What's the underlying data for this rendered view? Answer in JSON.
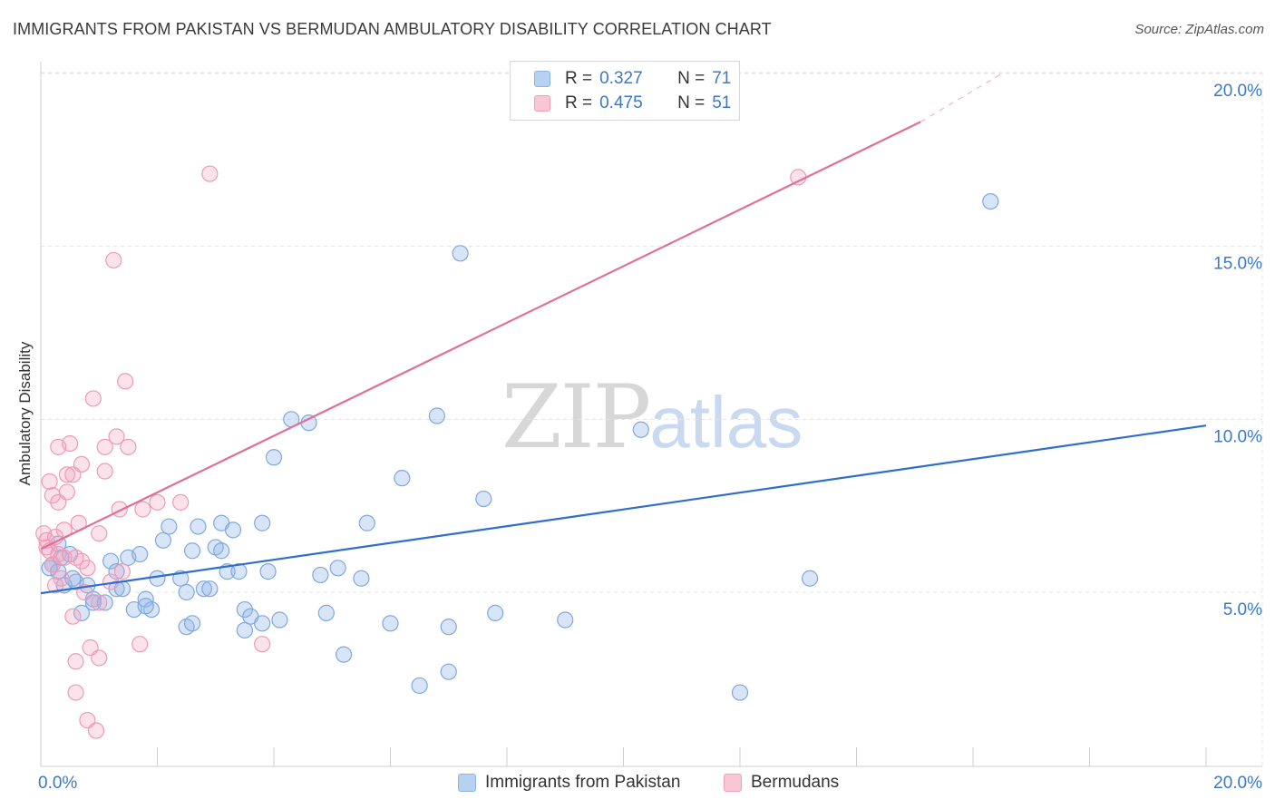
{
  "title": "IMMIGRANTS FROM PAKISTAN VS BERMUDAN AMBULATORY DISABILITY CORRELATION CHART",
  "source": "Source: ZipAtlas.com",
  "watermark": {
    "zip": "ZIP",
    "atlas": "atlas"
  },
  "legend": {
    "series": [
      {
        "r_label": "R =",
        "r_value": "0.327",
        "n_label": "N =",
        "n_value": "71",
        "fill": "#b7d1f3",
        "stroke": "#8db3e6"
      },
      {
        "r_label": "R =",
        "r_value": "0.475",
        "n_label": "N =",
        "n_value": "51",
        "fill": "#f9c6d6",
        "stroke": "#f0a0bb"
      }
    ]
  },
  "bottom_legend": [
    {
      "label": "Immigrants from Pakistan"
    },
    {
      "label": "Bermudans"
    }
  ],
  "colors": {
    "blue_fill": "rgba(143,180,232,0.35)",
    "blue_stroke": "#7fa8df",
    "blue_line": "#2f6ecb",
    "pink_fill": "rgba(244,160,190,0.30)",
    "pink_stroke": "#ee9ab7",
    "pink_line": "#e07098",
    "axis_text": "#3a78c9",
    "grid": "#e3e3e3"
  },
  "chart_data": {
    "type": "scatter",
    "title": "IMMIGRANTS FROM PAKISTAN VS BERMUDAN AMBULATORY DISABILITY CORRELATION CHART",
    "xlabel": "",
    "ylabel": "Ambulatory Disability",
    "xlim": [
      0,
      20
    ],
    "ylim": [
      0,
      20.5
    ],
    "x_tick_labels": [
      {
        "value": 0,
        "label": "0.0%"
      },
      {
        "value": 20,
        "label": "20.0%"
      }
    ],
    "y_tick_labels": [
      {
        "value": 5,
        "label": "5.0%"
      },
      {
        "value": 10,
        "label": "10.0%"
      },
      {
        "value": 15,
        "label": "15.0%"
      },
      {
        "value": 20,
        "label": "20.0%"
      }
    ],
    "x_minor_ticks": [
      0,
      2,
      4,
      6,
      8,
      10,
      12,
      14,
      16,
      18,
      20
    ],
    "grid": true,
    "series": [
      {
        "name": "Immigrants from Pakistan",
        "color": "blue",
        "points": [
          [
            0.2,
            5.8
          ],
          [
            0.3,
            6.4
          ],
          [
            0.5,
            6.1
          ],
          [
            0.6,
            5.3
          ],
          [
            0.3,
            5.6
          ],
          [
            0.4,
            5.2
          ],
          [
            0.8,
            5.2
          ],
          [
            0.9,
            4.8
          ],
          [
            1.1,
            4.7
          ],
          [
            1.2,
            5.9
          ],
          [
            1.3,
            5.6
          ],
          [
            1.3,
            5.1
          ],
          [
            1.4,
            5.1
          ],
          [
            1.5,
            6.0
          ],
          [
            1.6,
            4.5
          ],
          [
            1.7,
            6.1
          ],
          [
            1.8,
            4.8
          ],
          [
            1.9,
            4.5
          ],
          [
            2.0,
            5.4
          ],
          [
            2.1,
            6.5
          ],
          [
            2.2,
            6.9
          ],
          [
            2.4,
            5.4
          ],
          [
            2.5,
            4.0
          ],
          [
            2.5,
            5.0
          ],
          [
            2.6,
            4.1
          ],
          [
            2.6,
            6.2
          ],
          [
            2.7,
            6.9
          ],
          [
            2.8,
            5.1
          ],
          [
            2.9,
            5.1
          ],
          [
            3.0,
            6.3
          ],
          [
            3.1,
            7.0
          ],
          [
            3.1,
            6.2
          ],
          [
            3.2,
            5.6
          ],
          [
            3.3,
            6.8
          ],
          [
            3.4,
            5.6
          ],
          [
            3.5,
            4.5
          ],
          [
            3.5,
            3.9
          ],
          [
            3.6,
            4.3
          ],
          [
            3.8,
            4.1
          ],
          [
            3.8,
            7.0
          ],
          [
            3.9,
            5.6
          ],
          [
            4.0,
            8.9
          ],
          [
            4.1,
            4.2
          ],
          [
            4.3,
            10.0
          ],
          [
            4.6,
            9.9
          ],
          [
            4.8,
            5.5
          ],
          [
            4.9,
            4.4
          ],
          [
            5.1,
            5.7
          ],
          [
            5.2,
            3.2
          ],
          [
            5.5,
            5.4
          ],
          [
            5.6,
            7.0
          ],
          [
            6.0,
            4.1
          ],
          [
            6.2,
            8.3
          ],
          [
            6.5,
            2.3
          ],
          [
            6.8,
            10.1
          ],
          [
            7.0,
            2.7
          ],
          [
            7.0,
            4.0
          ],
          [
            7.2,
            14.8
          ],
          [
            7.6,
            7.7
          ],
          [
            7.8,
            4.4
          ],
          [
            9.0,
            4.2
          ],
          [
            10.3,
            9.7
          ],
          [
            12.0,
            2.1
          ],
          [
            13.2,
            5.4
          ],
          [
            16.3,
            16.3
          ],
          [
            0.15,
            5.7
          ],
          [
            0.7,
            4.4
          ],
          [
            0.9,
            4.7
          ],
          [
            0.55,
            5.4
          ],
          [
            1.8,
            4.6
          ],
          [
            0.35,
            6.0
          ]
        ]
      },
      {
        "name": "Bermudans",
        "color": "pink",
        "points": [
          [
            0.05,
            6.7
          ],
          [
            0.1,
            6.3
          ],
          [
            0.1,
            6.5
          ],
          [
            0.15,
            6.2
          ],
          [
            0.15,
            8.2
          ],
          [
            0.2,
            5.8
          ],
          [
            0.2,
            7.8
          ],
          [
            0.25,
            6.6
          ],
          [
            0.3,
            7.6
          ],
          [
            0.3,
            9.2
          ],
          [
            0.35,
            5.4
          ],
          [
            0.4,
            6.0
          ],
          [
            0.45,
            7.9
          ],
          [
            0.45,
            8.4
          ],
          [
            0.5,
            9.3
          ],
          [
            0.55,
            8.4
          ],
          [
            0.55,
            4.3
          ],
          [
            0.6,
            3.0
          ],
          [
            0.6,
            2.1
          ],
          [
            0.6,
            6.0
          ],
          [
            0.65,
            7.0
          ],
          [
            0.7,
            5.9
          ],
          [
            0.75,
            5.0
          ],
          [
            0.8,
            5.7
          ],
          [
            0.8,
            1.3
          ],
          [
            0.85,
            3.4
          ],
          [
            0.9,
            10.6
          ],
          [
            0.95,
            1.0
          ],
          [
            1.0,
            6.7
          ],
          [
            1.0,
            4.7
          ],
          [
            1.0,
            3.1
          ],
          [
            1.1,
            8.5
          ],
          [
            1.1,
            9.2
          ],
          [
            1.2,
            5.3
          ],
          [
            1.25,
            14.6
          ],
          [
            1.3,
            9.5
          ],
          [
            1.35,
            7.4
          ],
          [
            1.4,
            5.6
          ],
          [
            1.45,
            11.1
          ],
          [
            1.5,
            9.2
          ],
          [
            1.7,
            3.5
          ],
          [
            1.75,
            7.4
          ],
          [
            2.0,
            7.6
          ],
          [
            2.4,
            7.6
          ],
          [
            2.9,
            17.1
          ],
          [
            3.8,
            3.5
          ],
          [
            13.0,
            17.0
          ],
          [
            0.3,
            6.1
          ],
          [
            0.4,
            6.8
          ],
          [
            0.25,
            5.2
          ],
          [
            0.7,
            8.7
          ]
        ]
      }
    ],
    "trend_lines": [
      {
        "series": "Immigrants from Pakistan",
        "x": [
          0,
          20
        ],
        "y": [
          4.97,
          9.82
        ],
        "dashed_extension": false
      },
      {
        "series": "Bermudans",
        "x": [
          0,
          15.1
        ],
        "y": [
          6.25,
          18.6
        ],
        "dashed_to": [
          16.5,
          20.0
        ]
      }
    ]
  }
}
